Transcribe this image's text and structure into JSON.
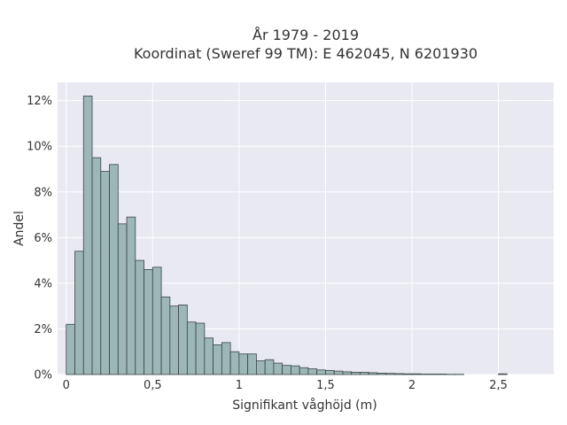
{
  "chart_data": {
    "type": "bar",
    "title_lines": [
      "År 1979 - 2019",
      "Koordinat (Sweref 99 TM): E 462045, N 6201930"
    ],
    "xlabel": "Signifikant våghöjd (m)",
    "ylabel": "Andel",
    "bin_width": 0.05,
    "x_start": 0,
    "xlim": [
      -0.05,
      2.82
    ],
    "ylim": [
      0,
      12.8
    ],
    "x_ticks": [
      0,
      0.5,
      1,
      1.5,
      2,
      2.5
    ],
    "x_tick_labels": [
      "0",
      "0,5",
      "1",
      "1,5",
      "2",
      "2,5"
    ],
    "y_ticks": [
      0,
      2,
      4,
      6,
      8,
      10,
      12
    ],
    "y_tick_labels": [
      "0%",
      "2%",
      "4%",
      "6%",
      "8%",
      "10%",
      "12%"
    ],
    "values": [
      2.2,
      5.4,
      12.2,
      9.5,
      8.9,
      9.2,
      6.6,
      6.9,
      5.0,
      4.6,
      4.7,
      3.4,
      3.0,
      3.05,
      2.3,
      2.25,
      1.6,
      1.3,
      1.4,
      1.0,
      0.9,
      0.9,
      0.6,
      0.65,
      0.5,
      0.4,
      0.38,
      0.3,
      0.25,
      0.2,
      0.18,
      0.15,
      0.12,
      0.1,
      0.1,
      0.08,
      0.06,
      0.05,
      0.04,
      0.03,
      0.03,
      0.02,
      0.02,
      0.02,
      0.01,
      0.01,
      0.0,
      0.0,
      0.0,
      0.0,
      0.03
    ],
    "grid": true,
    "colors": {
      "background": "#e9e9f1",
      "bar_fill": "#9db6b6",
      "bar_stroke": "#3a4646",
      "grid": "#ffffff"
    }
  }
}
